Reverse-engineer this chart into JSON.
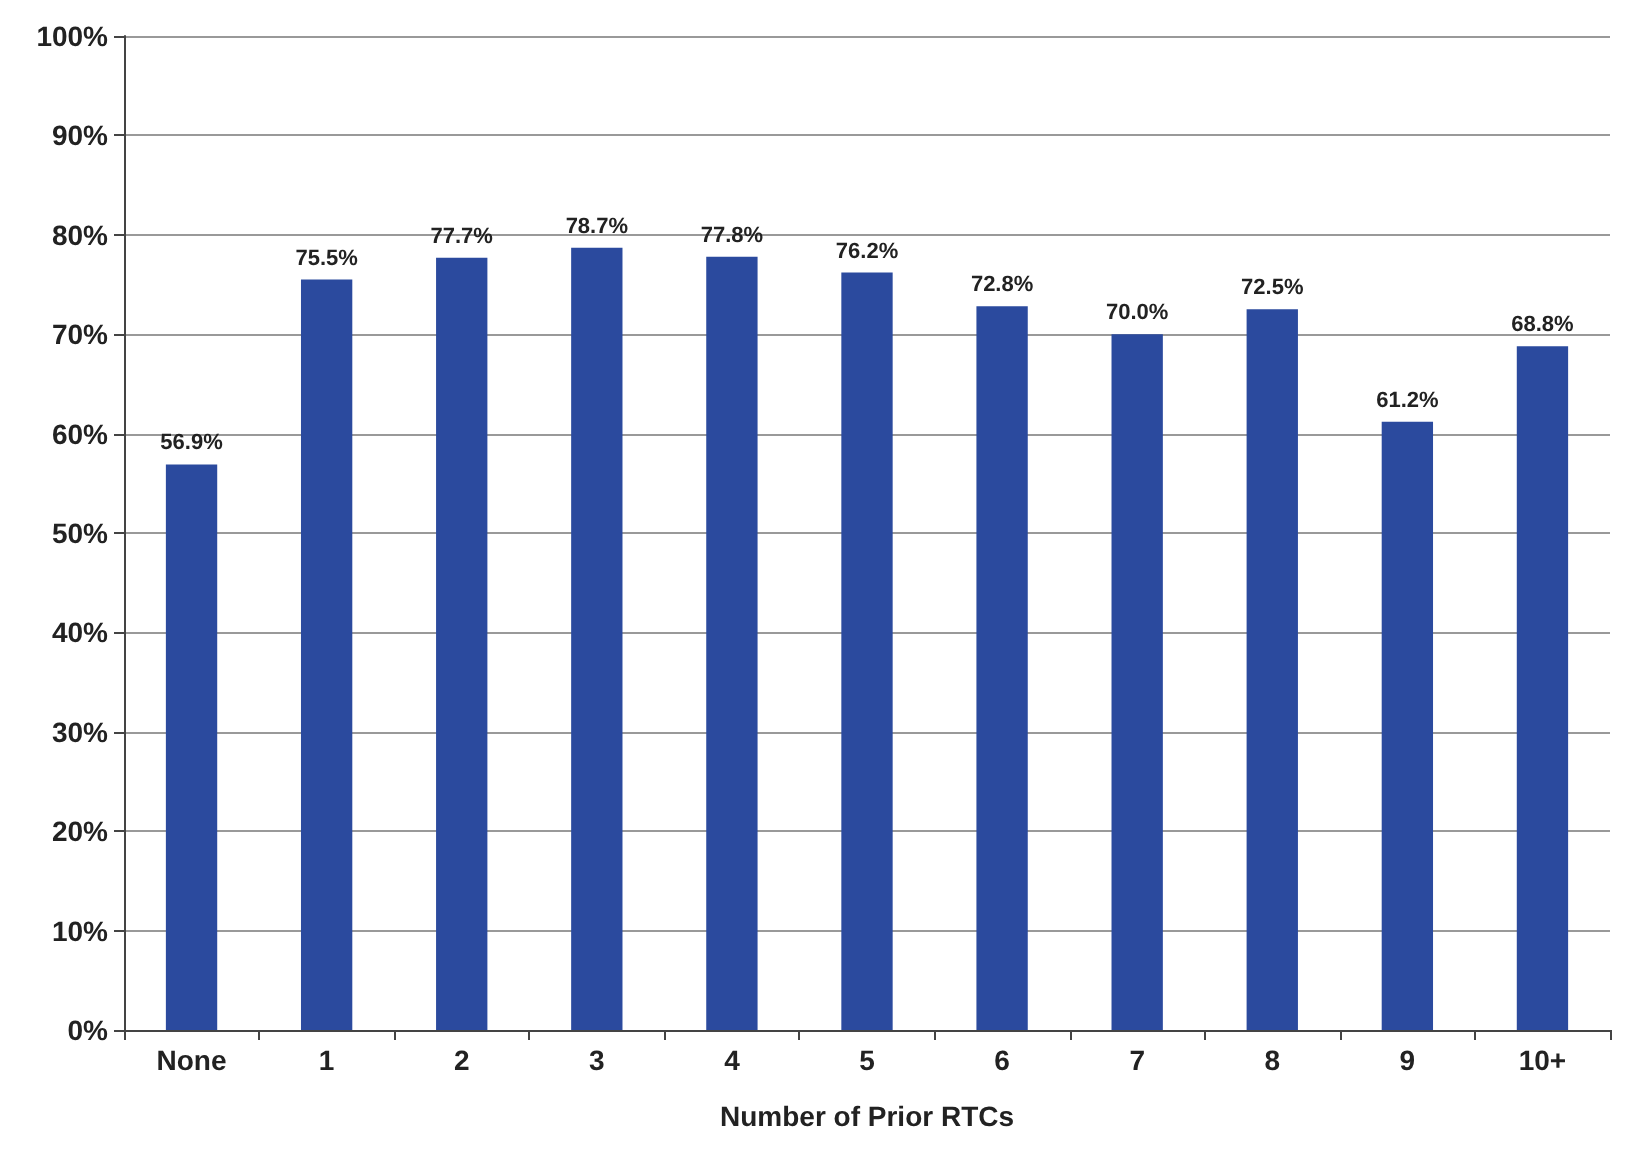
{
  "chart_data": {
    "type": "bar",
    "xlabel": "Number of Prior RTCs",
    "categories": [
      "None",
      "1",
      "2",
      "3",
      "4",
      "5",
      "6",
      "7",
      "8",
      "9",
      "10+"
    ],
    "values": [
      56.9,
      75.5,
      77.7,
      78.7,
      77.8,
      76.2,
      72.8,
      70.0,
      72.5,
      61.2,
      68.8
    ],
    "value_labels": [
      "56.9%",
      "75.5%",
      "77.7%",
      "78.7%",
      "77.8%",
      "76.2%",
      "72.8%",
      "70.0%",
      "72.5%",
      "61.2%",
      "68.8%"
    ],
    "color": "#2b4a9e",
    "ylim": [
      0,
      100
    ],
    "yticks": [
      {
        "value": 0,
        "label": "0%"
      },
      {
        "value": 10,
        "label": "10%"
      },
      {
        "value": 20,
        "label": "20%"
      },
      {
        "value": 30,
        "label": "30%"
      },
      {
        "value": 40,
        "label": "40%"
      },
      {
        "value": 50,
        "label": "50%"
      },
      {
        "value": 60,
        "label": "60%"
      },
      {
        "value": 70,
        "label": "70%"
      },
      {
        "value": 80,
        "label": "80%"
      },
      {
        "value": 90,
        "label": "90%"
      },
      {
        "value": 100,
        "label": "100%"
      }
    ],
    "grid": "y"
  }
}
